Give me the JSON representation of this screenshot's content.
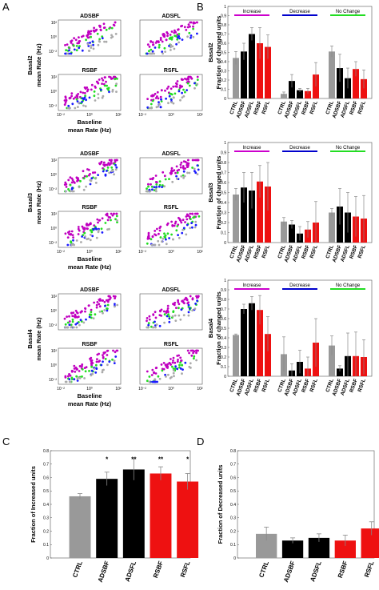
{
  "panel_labels": [
    "A",
    "B",
    "C",
    "D"
  ],
  "chart_data": [
    {
      "type": "scatter",
      "panel": "A",
      "row_label": "Basal2 mean Rate (Hz)",
      "x_label": "Baseline mean Rate (Hz)",
      "ticks_y": [
        "10²",
        "10⁰",
        "10⁻²"
      ],
      "ticks_x": [
        "10⁻²",
        "10⁰",
        "10²"
      ],
      "subplots": [
        {
          "title": "ADSBF"
        },
        {
          "title": "ADSFL"
        },
        {
          "title": "RSBF"
        },
        {
          "title": "RSFL"
        }
      ],
      "series_colors": [
        "#c000c0",
        "#22dd22",
        "#1a1aff",
        "#aaaaaa"
      ]
    },
    {
      "type": "scatter",
      "panel": "A",
      "row_label": "Basal3 mean Rate (Hz)",
      "x_label": "Baseline mean Rate (Hz)",
      "ticks_y": [
        "10²",
        "10⁰",
        "10⁻²"
      ],
      "ticks_x": [
        "10⁻²",
        "10⁰",
        "10²"
      ],
      "subplots": [
        {
          "title": "ADSBF"
        },
        {
          "title": "ADSFL"
        },
        {
          "title": "RSBF"
        },
        {
          "title": "RSFL"
        }
      ],
      "series_colors": [
        "#c000c0",
        "#22dd22",
        "#1a1aff",
        "#aaaaaa"
      ]
    },
    {
      "type": "scatter",
      "panel": "A",
      "row_label": "Basal4 mean Rate (Hz)",
      "x_label": "Baseline mean Rate (Hz)",
      "ticks_y": [
        "10²",
        "10⁰",
        "10⁻²"
      ],
      "ticks_x": [
        "10⁻²",
        "10⁰",
        "10²"
      ],
      "subplots": [
        {
          "title": "ADSBF"
        },
        {
          "title": "ADSFL"
        },
        {
          "title": "RSBF"
        },
        {
          "title": "RSFL"
        }
      ],
      "series_colors": [
        "#c000c0",
        "#22dd22",
        "#1a1aff",
        "#aaaaaa"
      ]
    },
    {
      "type": "bar",
      "panel": "B",
      "ylabel": "Basal2 Fraction of changed units",
      "ylim": [
        0,
        1
      ],
      "yticks": [
        "0",
        "0.1",
        "0.2",
        "0.3",
        "0.4",
        "0.5",
        "0.6",
        "0.7",
        "0.8",
        "0.9",
        "1"
      ],
      "categories": [
        "CTRL",
        "ADSBF",
        "ADSFL",
        "RSBF",
        "RSFL"
      ],
      "bar_colors": [
        "#999999",
        "#000000",
        "#000000",
        "#ee1111",
        "#ee1111"
      ],
      "groups": [
        {
          "name": "Increase",
          "color": "#cc00cc",
          "values": [
            0.44,
            0.51,
            0.7,
            0.6,
            0.56
          ],
          "errors": [
            0.07,
            0.09,
            0.07,
            0.17,
            0.13
          ]
        },
        {
          "name": "Decrease",
          "color": "#0000cc",
          "values": [
            0.05,
            0.19,
            0.09,
            0.08,
            0.26
          ],
          "errors": [
            0.02,
            0.07,
            0.02,
            0.03,
            0.13
          ]
        },
        {
          "name": "No Change",
          "color": "#22dd22",
          "values": [
            0.51,
            0.33,
            0.22,
            0.32,
            0.21
          ],
          "errors": [
            0.06,
            0.15,
            0.11,
            0.08,
            0.1
          ]
        }
      ]
    },
    {
      "type": "bar",
      "panel": "B",
      "ylabel": "Basal3 Fraction of changed units",
      "ylim": [
        0,
        1
      ],
      "yticks": [
        "0",
        "0.1",
        "0.2",
        "0.3",
        "0.4",
        "0.5",
        "0.6",
        "0.7",
        "0.8",
        "0.9",
        "1"
      ],
      "categories": [
        "CTRL",
        "ADSBF",
        "ADSFL",
        "RSBF",
        "RSFL"
      ],
      "bar_colors": [
        "#999999",
        "#000000",
        "#000000",
        "#ee1111",
        "#ee1111"
      ],
      "groups": [
        {
          "name": "Increase",
          "color": "#cc00cc",
          "values": [
            0.48,
            0.55,
            0.52,
            0.61,
            0.56
          ],
          "errors": [
            0.06,
            0.15,
            0.18,
            0.16,
            0.24
          ]
        },
        {
          "name": "Decrease",
          "color": "#0000cc",
          "values": [
            0.21,
            0.18,
            0.09,
            0.13,
            0.2
          ],
          "errors": [
            0.04,
            0.04,
            0.07,
            0.08,
            0.21
          ]
        },
        {
          "name": "No Change",
          "color": "#22dd22",
          "values": [
            0.3,
            0.36,
            0.3,
            0.26,
            0.24
          ],
          "errors": [
            0.04,
            0.18,
            0.2,
            0.2,
            0.23
          ]
        }
      ]
    },
    {
      "type": "bar",
      "panel": "B",
      "ylabel": "Basal4 Fraction of changed units",
      "ylim": [
        0,
        1
      ],
      "yticks": [
        "0",
        "0.1",
        "0.2",
        "0.3",
        "0.4",
        "0.5",
        "0.6",
        "0.7",
        "0.8",
        "0.9",
        "1"
      ],
      "categories": [
        "CTRL",
        "ADSBF",
        "ADSFL",
        "RSBF",
        "RSFL"
      ],
      "bar_colors": [
        "#999999",
        "#000000",
        "#000000",
        "#ee1111",
        "#ee1111"
      ],
      "groups": [
        {
          "name": "Increase",
          "color": "#cc00cc",
          "values": [
            0.43,
            0.7,
            0.76,
            0.69,
            0.44
          ],
          "errors": [
            0.01,
            0.05,
            0.07,
            0.15,
            0.18
          ]
        },
        {
          "name": "Decrease",
          "color": "#0000cc",
          "values": [
            0.23,
            0.06,
            0.15,
            0.08,
            0.35
          ],
          "errors": [
            0.18,
            0.07,
            0.12,
            0.12,
            0.25
          ]
        },
        {
          "name": "No Change",
          "color": "#22dd22",
          "values": [
            0.32,
            0.08,
            0.21,
            0.21,
            0.2
          ],
          "errors": [
            0.1,
            0.03,
            0.24,
            0.25,
            0.18
          ]
        }
      ]
    },
    {
      "type": "bar",
      "panel": "C",
      "ylabel": "Fraction of Increased units",
      "ylim": [
        0,
        0.8
      ],
      "yticks": [
        "0",
        "0.1",
        "0.2",
        "0.3",
        "0.4",
        "0.5",
        "0.6",
        "0.7",
        "0.8"
      ],
      "categories": [
        "CTRL",
        "ADSBF",
        "ADSFL",
        "RSBF",
        "RSFL"
      ],
      "values": [
        0.46,
        0.59,
        0.66,
        0.63,
        0.57
      ],
      "errors": [
        0.02,
        0.05,
        0.08,
        0.05,
        0.06
      ],
      "annotations": [
        "",
        "*",
        "**",
        "**",
        "*"
      ],
      "bar_colors": [
        "#999999",
        "#000000",
        "#000000",
        "#ee1111",
        "#ee1111"
      ]
    },
    {
      "type": "bar",
      "panel": "D",
      "ylabel": "Fraction of Decreased units",
      "ylim": [
        0,
        0.8
      ],
      "yticks": [
        "0",
        "0.1",
        "0.2",
        "0.3",
        "0.4",
        "0.5",
        "0.6",
        "0.7",
        "0.8"
      ],
      "categories": [
        "CTRL",
        "ADSBF",
        "ADSFL",
        "RSBF",
        "RSFL"
      ],
      "values": [
        0.18,
        0.13,
        0.15,
        0.13,
        0.22
      ],
      "errors": [
        0.05,
        0.02,
        0.03,
        0.04,
        0.05
      ],
      "annotations": [
        "",
        "",
        "",
        "",
        ""
      ],
      "bar_colors": [
        "#999999",
        "#000000",
        "#000000",
        "#ee1111",
        "#ee1111"
      ]
    }
  ]
}
